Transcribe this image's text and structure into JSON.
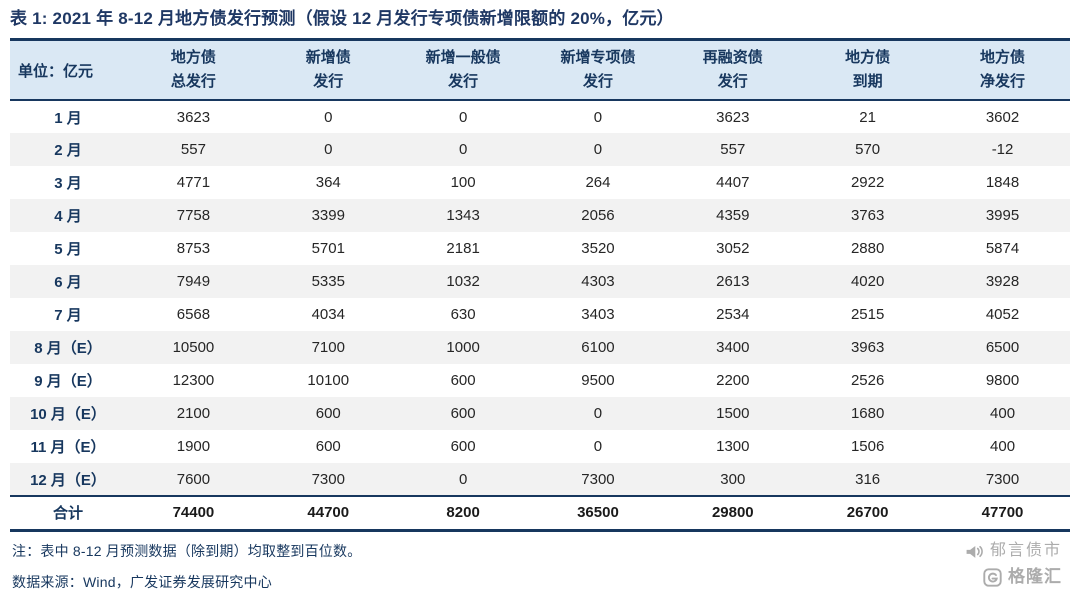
{
  "title": "表 1:  2021 年 8-12 月地方债发行预测（假设 12 月发行专项债新增限额的 20%，亿元）",
  "table": {
    "unit_label": "单位：亿元",
    "columns": [
      {
        "line1": "地方债",
        "line2": "总发行"
      },
      {
        "line1": "新增债",
        "line2": "发行"
      },
      {
        "line1": "新增一般债",
        "line2": "发行"
      },
      {
        "line1": "新增专项债",
        "line2": "发行"
      },
      {
        "line1": "再融资债",
        "line2": "发行"
      },
      {
        "line1": "地方债",
        "line2": "到期"
      },
      {
        "line1": "地方债",
        "line2": "净发行"
      }
    ],
    "rows": [
      {
        "label": "1 月",
        "values": [
          "3623",
          "0",
          "0",
          "0",
          "3623",
          "21",
          "3602"
        ]
      },
      {
        "label": "2 月",
        "values": [
          "557",
          "0",
          "0",
          "0",
          "557",
          "570",
          "-12"
        ]
      },
      {
        "label": "3 月",
        "values": [
          "4771",
          "364",
          "100",
          "264",
          "4407",
          "2922",
          "1848"
        ]
      },
      {
        "label": "4 月",
        "values": [
          "7758",
          "3399",
          "1343",
          "2056",
          "4359",
          "3763",
          "3995"
        ]
      },
      {
        "label": "5 月",
        "values": [
          "8753",
          "5701",
          "2181",
          "3520",
          "3052",
          "2880",
          "5874"
        ]
      },
      {
        "label": "6 月",
        "values": [
          "7949",
          "5335",
          "1032",
          "4303",
          "2613",
          "4020",
          "3928"
        ]
      },
      {
        "label": "7 月",
        "values": [
          "6568",
          "4034",
          "630",
          "3403",
          "2534",
          "2515",
          "4052"
        ]
      },
      {
        "label": "8 月（E）",
        "values": [
          "10500",
          "7100",
          "1000",
          "6100",
          "3400",
          "3963",
          "6500"
        ]
      },
      {
        "label": "9 月（E）",
        "values": [
          "12300",
          "10100",
          "600",
          "9500",
          "2200",
          "2526",
          "9800"
        ]
      },
      {
        "label": "10 月（E）",
        "values": [
          "2100",
          "600",
          "600",
          "0",
          "1500",
          "1680",
          "400"
        ]
      },
      {
        "label": "11 月（E）",
        "values": [
          "1900",
          "600",
          "600",
          "0",
          "1300",
          "1506",
          "400"
        ]
      },
      {
        "label": "12 月（E）",
        "values": [
          "7600",
          "7300",
          "0",
          "7300",
          "300",
          "316",
          "7300"
        ]
      }
    ],
    "total": {
      "label": "合计",
      "values": [
        "74400",
        "44700",
        "8200",
        "36500",
        "29800",
        "26700",
        "47700"
      ]
    }
  },
  "notes": {
    "note1": "注：表中 8-12 月预测数据（除到期）均取整到百位数。",
    "note2": "数据来源：Wind，广发证券发展研究中心"
  },
  "watermarks": {
    "brand1": "郁言债市",
    "brand2": "格隆汇"
  },
  "colors": {
    "navy": "#17375E",
    "header_bg": "#DAE8F4",
    "alt_row": "#F2F2F2",
    "watermark_gray": "#ACACAC"
  }
}
